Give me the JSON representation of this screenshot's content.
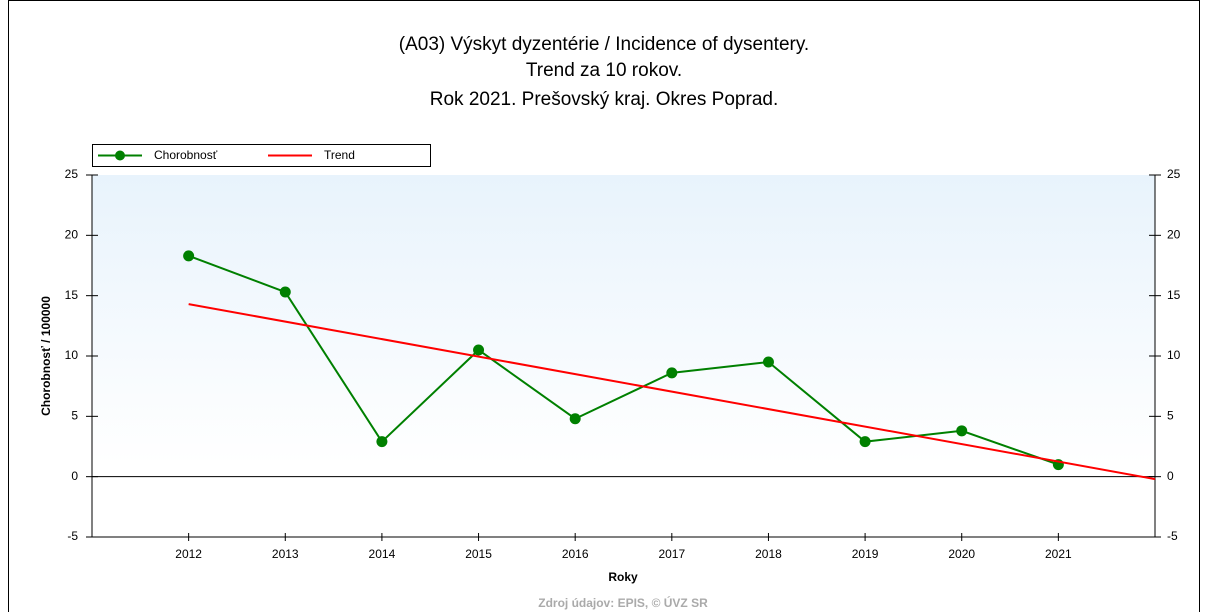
{
  "chart_data": {
    "type": "line",
    "title": [
      "(A03) Výskyt dyzentérie / Incidence of dysentery.",
      "Trend za 10 rokov.",
      "Rok 2021. Prešovský kraj. Okres Poprad."
    ],
    "y_label": "Chorobnosť / 100000",
    "x_label": "Roky",
    "source": "Zdroj údajov: EPIS, © ÚVZ SR",
    "xlim": [
      2011,
      2022
    ],
    "xticks": [
      2012,
      2013,
      2014,
      2015,
      2016,
      2017,
      2018,
      2019,
      2020,
      2021
    ],
    "ylim": [
      -5,
      25
    ],
    "yticks": [
      -5,
      0,
      5,
      10,
      15,
      20,
      25
    ],
    "series": [
      {
        "name": "Chorobnosť",
        "color": "#008000",
        "markers": true,
        "x": [
          2012,
          2013,
          2014,
          2015,
          2016,
          2017,
          2018,
          2019,
          2020,
          2021
        ],
        "values": [
          18.3,
          15.3,
          2.9,
          10.5,
          4.8,
          8.6,
          9.5,
          2.9,
          3.8,
          1.0
        ]
      },
      {
        "name": "Trend",
        "color": "#ff0000",
        "markers": false,
        "x": [
          2012,
          2022
        ],
        "values": [
          14.3,
          -0.2
        ]
      }
    ]
  }
}
